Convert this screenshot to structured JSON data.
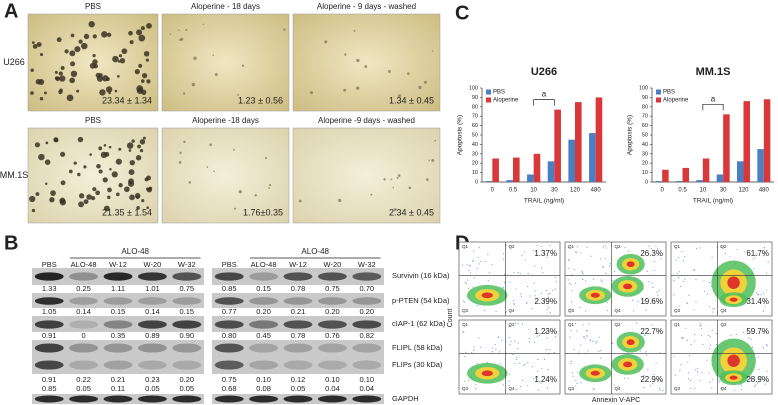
{
  "panel_labels": [
    "A",
    "B",
    "C",
    "D"
  ],
  "panel_a": {
    "rows": [
      {
        "label": "U266",
        "images": [
          {
            "title": "PBS",
            "value": "23.34 ± 1.34"
          },
          {
            "title": "Aloperine - 18 days",
            "value": "1.23 ± 0.56"
          },
          {
            "title": "Aloperine - 9 days - washed",
            "value": "1.34 ± 0.45"
          }
        ]
      },
      {
        "label": "MM.1S",
        "images": [
          {
            "title": "PBS",
            "value": "21.35 ± 1.54"
          },
          {
            "title": "Aloperine -18 days",
            "value": "1.76±0.35"
          },
          {
            "title": "Aloperine -9 days - washed",
            "value": "2.34 ± 0.45"
          }
        ]
      }
    ]
  },
  "panel_b": {
    "markers": [
      "Survivin (16 kDa)",
      "p-PTEN (54 kDa)",
      "cIAP-1 (62 kDa)",
      "FLIPL (58 kDa)",
      "FLIPs (30 kDa)",
      "GAPDH"
    ],
    "blots": [
      {
        "group_label": "ALO-48",
        "columns": [
          "PBS",
          "ALO-48",
          "W-12",
          "W-20",
          "W-32"
        ],
        "quantification": [
          [
            "1.33",
            "0.25",
            "1.11",
            "1.01",
            "0.75"
          ],
          [
            "1.05",
            "0.14",
            "0.15",
            "0.14",
            "0.15"
          ],
          [
            "0.91",
            "0",
            "0.35",
            "0.89",
            "0.90"
          ],
          [
            "0.91",
            "0.22",
            "0.21",
            "0.23",
            "0.20"
          ],
          [
            "0.85",
            "0.05",
            "0.11",
            "0.05",
            "0.05"
          ]
        ]
      },
      {
        "group_label": "ALO-48",
        "columns": [
          "PBS",
          "ALO-48",
          "W-12",
          "W-20",
          "W-32"
        ],
        "quantification": [
          [
            "0.85",
            "0.15",
            "0.78",
            "0.75",
            "0.70"
          ],
          [
            "0.77",
            "0.20",
            "0.21",
            "0.20",
            "0.20"
          ],
          [
            "0.80",
            "0.45",
            "0.78",
            "0.76",
            "0.82"
          ],
          [
            "0.75",
            "0.10",
            "0.12",
            "0.10",
            "0.10"
          ],
          [
            "0.68",
            "0.08",
            "0.05",
            "0.04",
            "0.04"
          ]
        ]
      }
    ]
  },
  "chart_data": [
    {
      "type": "bar",
      "title": "U266",
      "y_label": "Apoptosis (%)",
      "x_label": "TRAIL (ng/ml)",
      "annotation": "a",
      "categories": [
        "0",
        "0.5",
        "10",
        "30",
        "120",
        "480"
      ],
      "series": [
        {
          "name": "PBS",
          "color": "#4a7fc1",
          "values": [
            1,
            2,
            8,
            22,
            45,
            52
          ]
        },
        {
          "name": "Aloperine",
          "color": "#d9383a",
          "values": [
            25,
            26,
            30,
            77,
            85,
            90
          ]
        }
      ],
      "ylim": [
        0,
        100
      ],
      "yticks": [
        0,
        10,
        20,
        30,
        40,
        50,
        60,
        70,
        80,
        90,
        100
      ],
      "legend": "top-left"
    },
    {
      "type": "bar",
      "title": "MM.1S",
      "y_label": "Apoptosis (%)",
      "x_label": "TRAIL (ng/ml)",
      "annotation": "a",
      "categories": [
        "0",
        "0.5",
        "10",
        "30",
        "120",
        "480"
      ],
      "series": [
        {
          "name": "PBS",
          "color": "#4a7fc1",
          "values": [
            1,
            1,
            2,
            8,
            22,
            35
          ]
        },
        {
          "name": "Aloperine",
          "color": "#d9383a",
          "values": [
            13,
            15,
            25,
            72,
            86,
            88
          ]
        }
      ],
      "ylim": [
        0,
        100
      ],
      "yticks": [
        0,
        10,
        20,
        30,
        40,
        50,
        60,
        70,
        80,
        90,
        100
      ],
      "legend": "top-left"
    }
  ],
  "panel_d": {
    "y_label": "Count",
    "x_label": "Annexin V-APC",
    "quadrants": [
      "Q1",
      "Q2",
      "Q3",
      "Q4"
    ],
    "plots": [
      {
        "q2": "1.37%",
        "q4": "2.39%"
      },
      {
        "q2": "26.3%",
        "q4": "19.6%"
      },
      {
        "q2": "61.7%",
        "q4": "31.4%"
      },
      {
        "q2": "1.23%",
        "q4": "1.24%"
      },
      {
        "q2": "22.7%",
        "q4": "22.9%"
      },
      {
        "q2": "59.7%",
        "q4": "28.9%"
      }
    ]
  }
}
